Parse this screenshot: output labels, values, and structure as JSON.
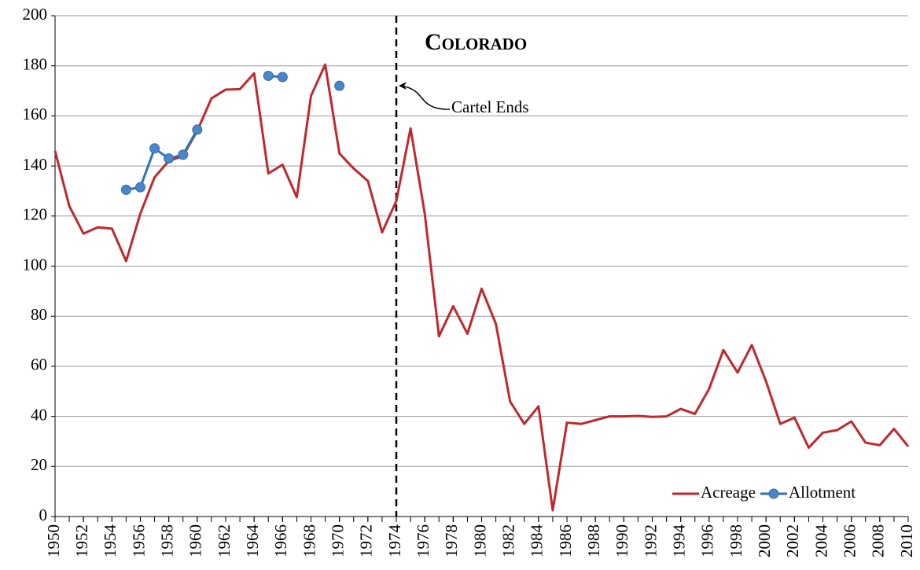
{
  "chart_data": {
    "type": "line",
    "title": "Colorado",
    "x": [
      1950,
      1951,
      1952,
      1953,
      1954,
      1955,
      1956,
      1957,
      1958,
      1959,
      1960,
      1961,
      1962,
      1963,
      1964,
      1965,
      1966,
      1967,
      1968,
      1969,
      1970,
      1971,
      1972,
      1973,
      1974,
      1975,
      1976,
      1977,
      1978,
      1979,
      1980,
      1981,
      1982,
      1983,
      1984,
      1985,
      1986,
      1987,
      1988,
      1989,
      1990,
      1991,
      1992,
      1993,
      1994,
      1995,
      1996,
      1997,
      1998,
      1999,
      2000,
      2001,
      2002,
      2003,
      2004,
      2005,
      2006,
      2007,
      2008,
      2009,
      2010
    ],
    "series": [
      {
        "name": "Acreage",
        "color": "#c0282d",
        "marker": false,
        "values": [
          146,
          124,
          113,
          115.5,
          115,
          102,
          121,
          135.5,
          142,
          144,
          154,
          167,
          170.5,
          170.7,
          177,
          137,
          140.5,
          127.5,
          168,
          180.5,
          145,
          139,
          134,
          113.5,
          126,
          155,
          121,
          72,
          84,
          73,
          91,
          77,
          46,
          37,
          44,
          2.5,
          37.5,
          37,
          38.5,
          40,
          40,
          40.2,
          39.8,
          40,
          43,
          41,
          51,
          66.5,
          57.5,
          68.5,
          54,
          37,
          39.5,
          27.5,
          33.5,
          34.5,
          38,
          29.5,
          28.5,
          35,
          28
        ]
      },
      {
        "name": "Allotment",
        "color": "#2e75b6",
        "marker": true,
        "values": [
          null,
          null,
          null,
          null,
          null,
          130.5,
          131.5,
          147,
          143,
          144.5,
          154.5,
          null,
          null,
          null,
          null,
          176,
          175.5,
          null,
          null,
          null,
          172,
          null,
          null,
          null,
          null,
          null,
          null,
          null,
          null,
          null,
          null,
          null,
          null,
          null,
          null,
          null,
          null,
          null,
          null,
          null,
          null,
          null,
          null,
          null,
          null,
          null,
          null,
          null,
          null,
          null,
          null,
          null,
          null,
          null,
          null,
          null,
          null,
          null,
          null,
          null,
          null
        ]
      }
    ],
    "xlim": [
      1950,
      2010
    ],
    "xticks": [
      1950,
      1952,
      1954,
      1956,
      1958,
      1960,
      1962,
      1964,
      1966,
      1968,
      1970,
      1972,
      1974,
      1976,
      1978,
      1980,
      1982,
      1984,
      1986,
      1988,
      1990,
      1992,
      1994,
      1996,
      1998,
      2000,
      2002,
      2004,
      2006,
      2008,
      2010
    ],
    "ylim": [
      0,
      200
    ],
    "yticks": [
      0,
      20,
      40,
      60,
      80,
      100,
      120,
      140,
      160,
      180,
      200
    ],
    "grid": true,
    "vline": 1974,
    "annotations": [
      {
        "text": "Cartel Ends",
        "x": 1974,
        "y": 172
      }
    ],
    "legend": "lower right"
  }
}
